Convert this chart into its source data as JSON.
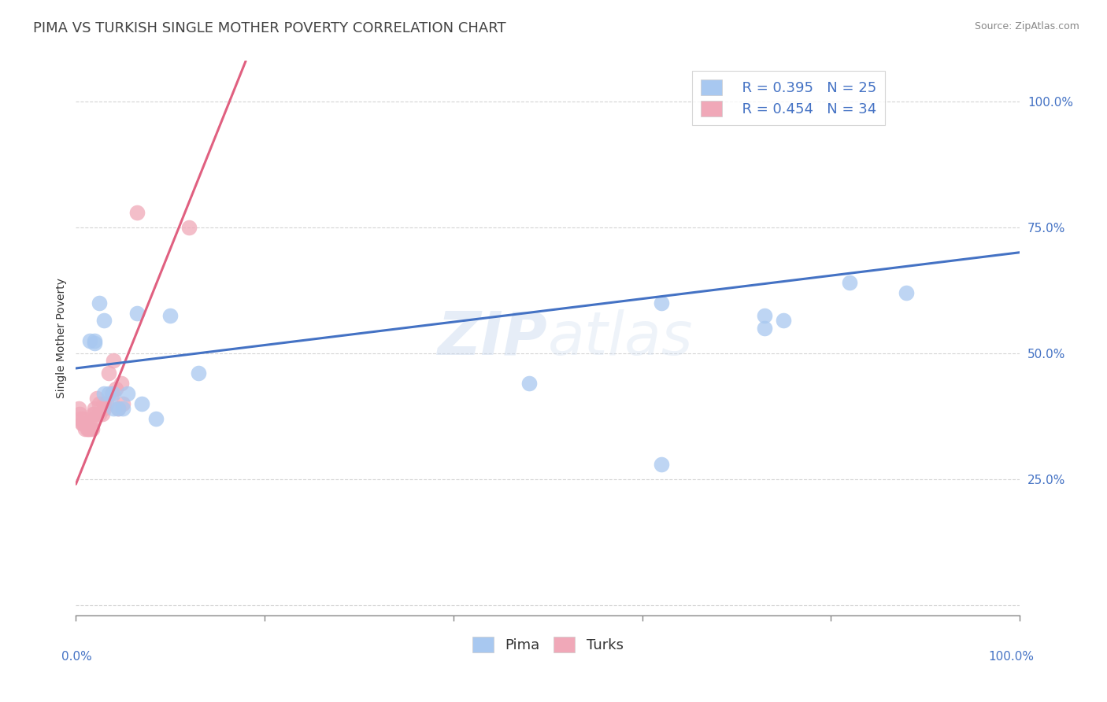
{
  "title": "PIMA VS TURKISH SINGLE MOTHER POVERTY CORRELATION CHART",
  "source": "Source: ZipAtlas.com",
  "ylabel": "Single Mother Poverty",
  "xmin": 0.0,
  "xmax": 1.0,
  "ymin": -0.02,
  "ymax": 1.08,
  "yticks": [
    0.0,
    0.25,
    0.5,
    0.75,
    1.0
  ],
  "ytick_labels": [
    "",
    "25.0%",
    "50.0%",
    "75.0%",
    "100.0%"
  ],
  "legend_r_pima": "R = 0.395",
  "legend_n_pima": "N = 25",
  "legend_r_turks": "R = 0.454",
  "legend_n_turks": "N = 34",
  "pima_color": "#a8c8f0",
  "turks_color": "#f0a8b8",
  "pima_line_color": "#4472c4",
  "turks_line_color": "#e06080",
  "background_color": "#ffffff",
  "watermark": "ZIPatlas",
  "pima_x": [
    0.015,
    0.02,
    0.02,
    0.025,
    0.03,
    0.03,
    0.035,
    0.04,
    0.04,
    0.045,
    0.05,
    0.055,
    0.065,
    0.07,
    0.085,
    0.1,
    0.13,
    0.48,
    0.62,
    0.73,
    0.75,
    0.82,
    0.88,
    0.62,
    0.73
  ],
  "pima_y": [
    0.525,
    0.525,
    0.52,
    0.6,
    0.565,
    0.42,
    0.42,
    0.42,
    0.39,
    0.39,
    0.39,
    0.42,
    0.58,
    0.4,
    0.37,
    0.575,
    0.46,
    0.44,
    0.28,
    0.575,
    0.565,
    0.64,
    0.62,
    0.6,
    0.55
  ],
  "turks_x": [
    0.003,
    0.004,
    0.005,
    0.006,
    0.007,
    0.008,
    0.009,
    0.01,
    0.01,
    0.012,
    0.013,
    0.015,
    0.015,
    0.017,
    0.018,
    0.02,
    0.02,
    0.02,
    0.022,
    0.025,
    0.025,
    0.028,
    0.03,
    0.03,
    0.032,
    0.035,
    0.038,
    0.04,
    0.042,
    0.045,
    0.048,
    0.05,
    0.065,
    0.12
  ],
  "turks_y": [
    0.39,
    0.38,
    0.37,
    0.36,
    0.36,
    0.37,
    0.36,
    0.36,
    0.35,
    0.35,
    0.35,
    0.35,
    0.36,
    0.35,
    0.38,
    0.39,
    0.38,
    0.37,
    0.41,
    0.4,
    0.38,
    0.38,
    0.39,
    0.4,
    0.4,
    0.46,
    0.42,
    0.485,
    0.43,
    0.39,
    0.44,
    0.4,
    0.78,
    0.75
  ],
  "pima_trend_x": [
    0.0,
    1.0
  ],
  "pima_trend_y": [
    0.47,
    0.7
  ],
  "turks_trend_x": [
    0.0,
    0.18
  ],
  "turks_trend_y": [
    0.24,
    1.08
  ],
  "title_fontsize": 13,
  "source_fontsize": 9,
  "legend_fontsize": 13,
  "axis_label_fontsize": 10,
  "tick_fontsize": 11
}
